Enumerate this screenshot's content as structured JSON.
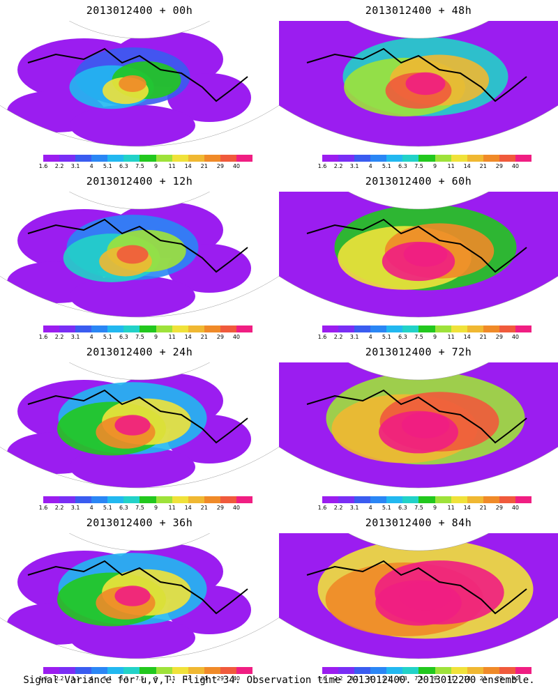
{
  "panels": [
    {
      "title": "2013012400 + 00h",
      "lead": "00h"
    },
    {
      "title": "2013012400 + 48h",
      "lead": "48h"
    },
    {
      "title": "2013012400 + 12h",
      "lead": "12h"
    },
    {
      "title": "2013012400 + 60h",
      "lead": "60h"
    },
    {
      "title": "2013012400 + 24h",
      "lead": "24h"
    },
    {
      "title": "2013012400 + 72h",
      "lead": "72h"
    },
    {
      "title": "2013012400 + 36h",
      "lead": "36h"
    },
    {
      "title": "2013012400 + 84h",
      "lead": "84h"
    }
  ],
  "colorbar": {
    "colors": [
      "#9b1df0",
      "#7a2ef5",
      "#3a5cf0",
      "#2a86f5",
      "#22b8f0",
      "#22d2c8",
      "#22c81e",
      "#9ee23a",
      "#f0e23a",
      "#f0b832",
      "#f08a28",
      "#f05a3c",
      "#f01e82"
    ],
    "labels": [
      "1.6",
      "2.2",
      "3.1",
      "4",
      "5.1",
      "6.3",
      "7.5",
      "9",
      "11",
      "14",
      "21",
      "29",
      "40"
    ]
  },
  "caption": "Signal Variance for u,v,T. Flight 34. Observation time 2013012400. 2013012200 ensemble."
}
